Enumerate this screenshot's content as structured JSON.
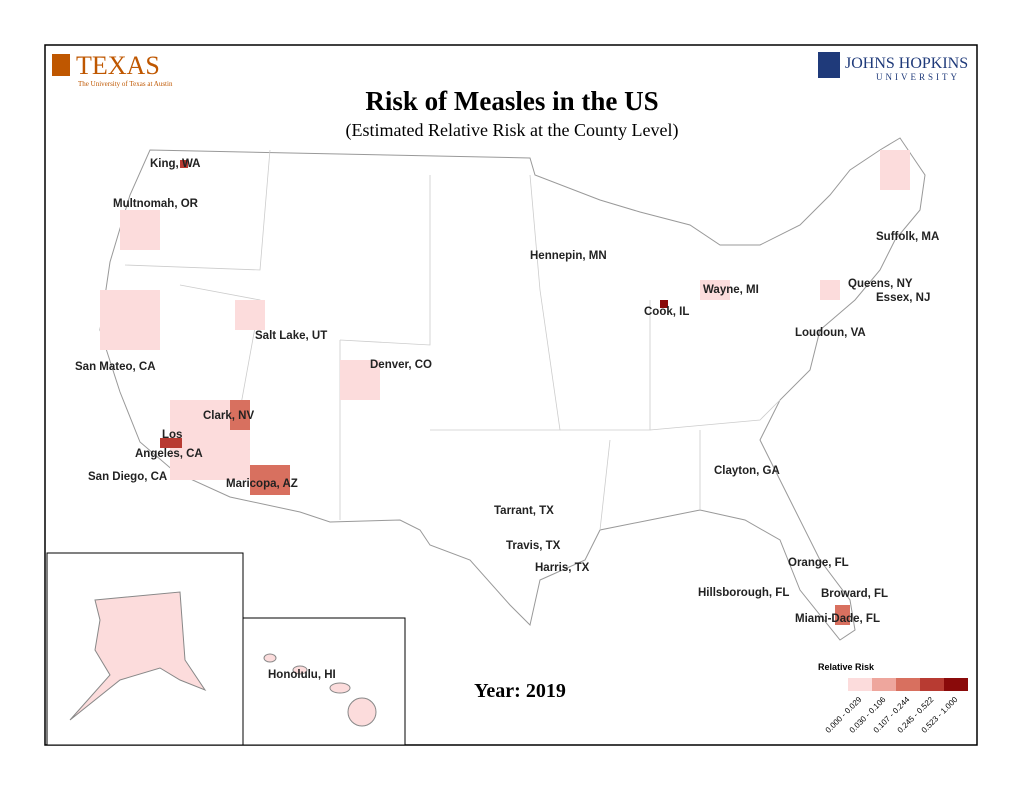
{
  "header": {
    "left_logo": {
      "name": "TEXAS",
      "subtitle": "The University of Texas at Austin"
    },
    "right_logo": {
      "name": "JOHNS HOPKINS",
      "subtitle": "UNIVERSITY"
    }
  },
  "title": "Risk of Measles in the US",
  "subtitle": "(Estimated Relative Risk at the County Level)",
  "year": "Year: 2019",
  "labels": [
    "King, WA",
    "Multnomah, OR",
    "Salt Lake, UT",
    "San Mateo, CA",
    "Denver, CO",
    "Clark, NV",
    "Los",
    "Angeles, CA",
    "San Diego, CA",
    "Maricopa, AZ",
    "Hennepin, MN",
    "Cook, IL",
    "Wayne, MI",
    "Suffolk, MA",
    "Queens, NY",
    "Essex, NJ",
    "Loudoun, VA",
    "Clayton, GA",
    "Tarrant, TX",
    "Travis, TX",
    "Harris, TX",
    "Orange, FL",
    "Hillsborough, FL",
    "Broward, FL",
    "Miami-Dade, FL",
    "Honolulu, HI"
  ],
  "legend": {
    "title": "Relative Risk",
    "classes": [
      {
        "label": "0.000 - 0.029",
        "color": "#fcdcdc"
      },
      {
        "label": "0.030 - 0.106",
        "color": "#eea69d"
      },
      {
        "label": "0.107 - 0.244",
        "color": "#d8705f"
      },
      {
        "label": "0.245 - 0.522",
        "color": "#b83b32"
      },
      {
        "label": "0.523 - 1.000",
        "color": "#8a0a0a"
      }
    ]
  }
}
